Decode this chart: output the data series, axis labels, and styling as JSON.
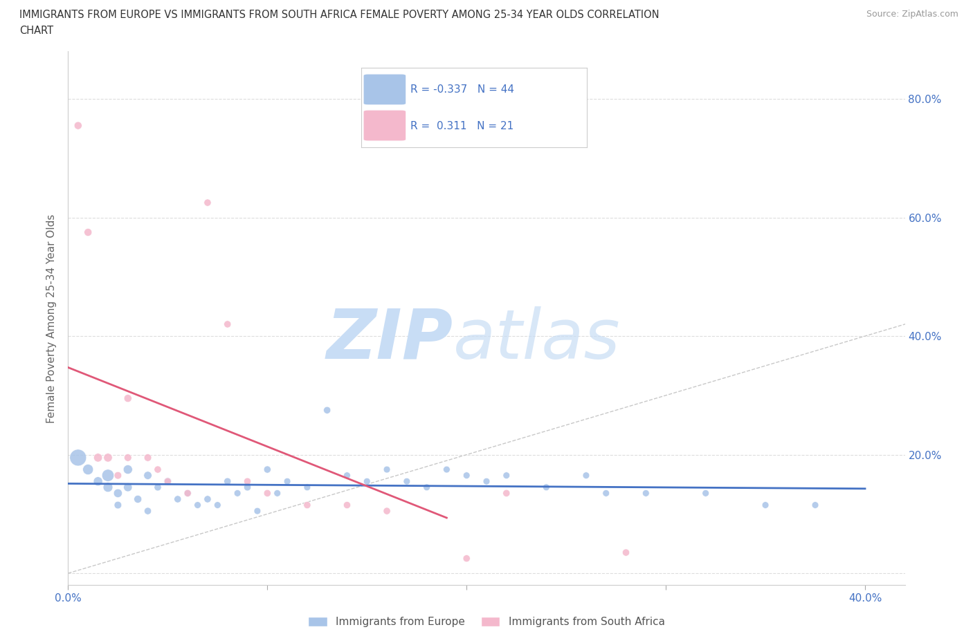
{
  "title_line1": "IMMIGRANTS FROM EUROPE VS IMMIGRANTS FROM SOUTH AFRICA FEMALE POVERTY AMONG 25-34 YEAR OLDS CORRELATION",
  "title_line2": "CHART",
  "source": "Source: ZipAtlas.com",
  "ylabel": "Female Poverty Among 25-34 Year Olds",
  "xlim": [
    0.0,
    0.42
  ],
  "ylim": [
    -0.02,
    0.88
  ],
  "xticks": [
    0.0,
    0.1,
    0.2,
    0.3,
    0.4
  ],
  "xtick_labels": [
    "0.0%",
    "",
    "",
    "",
    "40.0%"
  ],
  "yticks": [
    0.0,
    0.2,
    0.4,
    0.6,
    0.8
  ],
  "ytick_labels_right": [
    "",
    "20.0%",
    "40.0%",
    "60.0%",
    "80.0%"
  ],
  "blue_color": "#a8c4e8",
  "pink_color": "#f4b8cc",
  "blue_line_color": "#4472c4",
  "pink_line_color": "#e05878",
  "diagonal_color": "#c8c8c8",
  "R_blue": -0.337,
  "N_blue": 44,
  "R_pink": 0.311,
  "N_pink": 21,
  "legend_europe": "Immigrants from Europe",
  "legend_south_africa": "Immigrants from South Africa",
  "blue_scatter_x": [
    0.005,
    0.01,
    0.015,
    0.02,
    0.02,
    0.025,
    0.025,
    0.03,
    0.03,
    0.035,
    0.04,
    0.04,
    0.045,
    0.05,
    0.055,
    0.06,
    0.065,
    0.07,
    0.075,
    0.08,
    0.085,
    0.09,
    0.095,
    0.1,
    0.105,
    0.11,
    0.12,
    0.13,
    0.14,
    0.15,
    0.16,
    0.17,
    0.18,
    0.19,
    0.2,
    0.21,
    0.22,
    0.24,
    0.26,
    0.27,
    0.29,
    0.32,
    0.35,
    0.375
  ],
  "blue_scatter_y": [
    0.195,
    0.175,
    0.155,
    0.165,
    0.145,
    0.135,
    0.115,
    0.175,
    0.145,
    0.125,
    0.165,
    0.105,
    0.145,
    0.155,
    0.125,
    0.135,
    0.115,
    0.125,
    0.115,
    0.155,
    0.135,
    0.145,
    0.105,
    0.175,
    0.135,
    0.155,
    0.145,
    0.275,
    0.165,
    0.155,
    0.175,
    0.155,
    0.145,
    0.175,
    0.165,
    0.155,
    0.165,
    0.145,
    0.165,
    0.135,
    0.135,
    0.135,
    0.115,
    0.115
  ],
  "blue_scatter_sizes": [
    300,
    120,
    90,
    160,
    100,
    80,
    60,
    90,
    80,
    65,
    70,
    55,
    55,
    65,
    55,
    55,
    50,
    55,
    50,
    55,
    50,
    55,
    50,
    55,
    50,
    50,
    50,
    55,
    50,
    50,
    50,
    50,
    50,
    50,
    50,
    50,
    50,
    50,
    50,
    50,
    50,
    50,
    50,
    50
  ],
  "pink_scatter_x": [
    0.005,
    0.01,
    0.015,
    0.02,
    0.025,
    0.03,
    0.03,
    0.04,
    0.045,
    0.05,
    0.06,
    0.07,
    0.08,
    0.09,
    0.1,
    0.12,
    0.14,
    0.16,
    0.2,
    0.22,
    0.28
  ],
  "pink_scatter_y": [
    0.755,
    0.575,
    0.195,
    0.195,
    0.165,
    0.295,
    0.195,
    0.195,
    0.175,
    0.155,
    0.135,
    0.625,
    0.42,
    0.155,
    0.135,
    0.115,
    0.115,
    0.105,
    0.025,
    0.135,
    0.035
  ],
  "pink_scatter_sizes": [
    65,
    65,
    80,
    80,
    60,
    65,
    60,
    60,
    55,
    55,
    55,
    55,
    55,
    55,
    55,
    55,
    55,
    55,
    55,
    55,
    55
  ],
  "grid_color": "#dddddd",
  "watermark_zip_color": "#c8ddf5",
  "watermark_atlas_color": "#c8ddf5"
}
